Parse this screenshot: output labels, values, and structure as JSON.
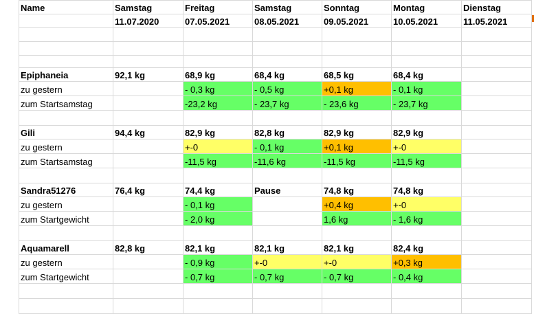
{
  "header": {
    "name": "Name",
    "days": [
      {
        "day": "Samstag",
        "date": "11.07.2020"
      },
      {
        "day": "Freitag",
        "date": "07.05.2021"
      },
      {
        "day": "Samstag",
        "date": "08.05.2021"
      },
      {
        "day": "Sonntag",
        "date": "09.05.2021"
      },
      {
        "day": "Montag",
        "date": "10.05.2021"
      },
      {
        "day": "Dienstag",
        "date": "11.05.2021"
      }
    ]
  },
  "blocks": [
    {
      "name": "Epiphaneia",
      "weights": [
        "92,1 kg",
        "68,9 kg",
        "68,4 kg",
        "68,5 kg",
        "68,4 kg",
        ""
      ],
      "row1_label": "zu gestern",
      "row1": [
        {
          "v": "",
          "c": ""
        },
        {
          "v": "- 0,3 kg",
          "c": "g"
        },
        {
          "v": "- 0,5 kg",
          "c": "g"
        },
        {
          "v": "+0,1 kg",
          "c": "o"
        },
        {
          "v": "- 0,1 kg",
          "c": "g"
        },
        {
          "v": "",
          "c": ""
        }
      ],
      "row2_label": "zum Startsamstag",
      "row2": [
        {
          "v": "",
          "c": ""
        },
        {
          "v": "-23,2 kg",
          "c": "g"
        },
        {
          "v": "- 23,7 kg",
          "c": "g"
        },
        {
          "v": "- 23,6 kg",
          "c": "g"
        },
        {
          "v": "- 23,7 kg",
          "c": "g"
        },
        {
          "v": "",
          "c": ""
        }
      ]
    },
    {
      "name": "Gili",
      "weights": [
        "94,4 kg",
        "82,9 kg",
        "82,8 kg",
        "82,9 kg",
        "82,9 kg",
        ""
      ],
      "row1_label": "zu gestern",
      "row1": [
        {
          "v": "",
          "c": ""
        },
        {
          "v": "+-0",
          "c": "y"
        },
        {
          "v": "- 0,1 kg",
          "c": "g"
        },
        {
          "v": "+0,1 kg",
          "c": "o"
        },
        {
          "v": "+-0",
          "c": "y"
        },
        {
          "v": "",
          "c": ""
        }
      ],
      "row2_label": "zum Startsamstag",
      "row2": [
        {
          "v": "",
          "c": ""
        },
        {
          "v": "-11,5 kg",
          "c": "g"
        },
        {
          "v": "-11,6 kg",
          "c": "g"
        },
        {
          "v": "-11,5 kg",
          "c": "g"
        },
        {
          "v": "-11,5 kg",
          "c": "g"
        },
        {
          "v": "",
          "c": ""
        }
      ]
    },
    {
      "name": "Sandra51276",
      "weights": [
        "76,4 kg",
        "74,4 kg",
        "Pause",
        "74,8 kg",
        "74,8 kg",
        ""
      ],
      "row1_label": "zu gestern",
      "row1": [
        {
          "v": "",
          "c": ""
        },
        {
          "v": "- 0,1 kg",
          "c": "g"
        },
        {
          "v": "",
          "c": ""
        },
        {
          "v": "+0,4 kg",
          "c": "o"
        },
        {
          "v": "+-0",
          "c": "y"
        },
        {
          "v": "",
          "c": ""
        }
      ],
      "row2_label": "zum Startgewicht",
      "row2": [
        {
          "v": "",
          "c": ""
        },
        {
          "v": "- 2,0 kg",
          "c": "g"
        },
        {
          "v": "",
          "c": ""
        },
        {
          "v": " 1,6 kg",
          "c": "g"
        },
        {
          "v": "- 1,6 kg",
          "c": "g"
        },
        {
          "v": "",
          "c": ""
        }
      ]
    },
    {
      "name": "Aquamarell",
      "weights": [
        "82,8 kg",
        "82,1 kg",
        "82,1 kg",
        "82,1 kg",
        "82,4 kg",
        ""
      ],
      "row1_label": "zu gestern",
      "row1": [
        {
          "v": "",
          "c": ""
        },
        {
          "v": "- 0,9 kg",
          "c": "g"
        },
        {
          "v": "+-0",
          "c": "y"
        },
        {
          "v": "+-0",
          "c": "y"
        },
        {
          "v": "+0,3 kg",
          "c": "o"
        },
        {
          "v": "",
          "c": ""
        }
      ],
      "row2_label": "zum Startgewicht",
      "row2": [
        {
          "v": "",
          "c": ""
        },
        {
          "v": "- 0,7 kg",
          "c": "g"
        },
        {
          "v": "- 0,7 kg",
          "c": "g"
        },
        {
          "v": "- 0,7 kg",
          "c": "g"
        },
        {
          "v": "- 0,4 kg",
          "c": "g"
        },
        {
          "v": "",
          "c": ""
        }
      ]
    }
  ],
  "colors": {
    "green": "#66ff66",
    "yellow": "#ffff66",
    "orange": "#ffbf00",
    "gridline": "#d9d9d9"
  }
}
